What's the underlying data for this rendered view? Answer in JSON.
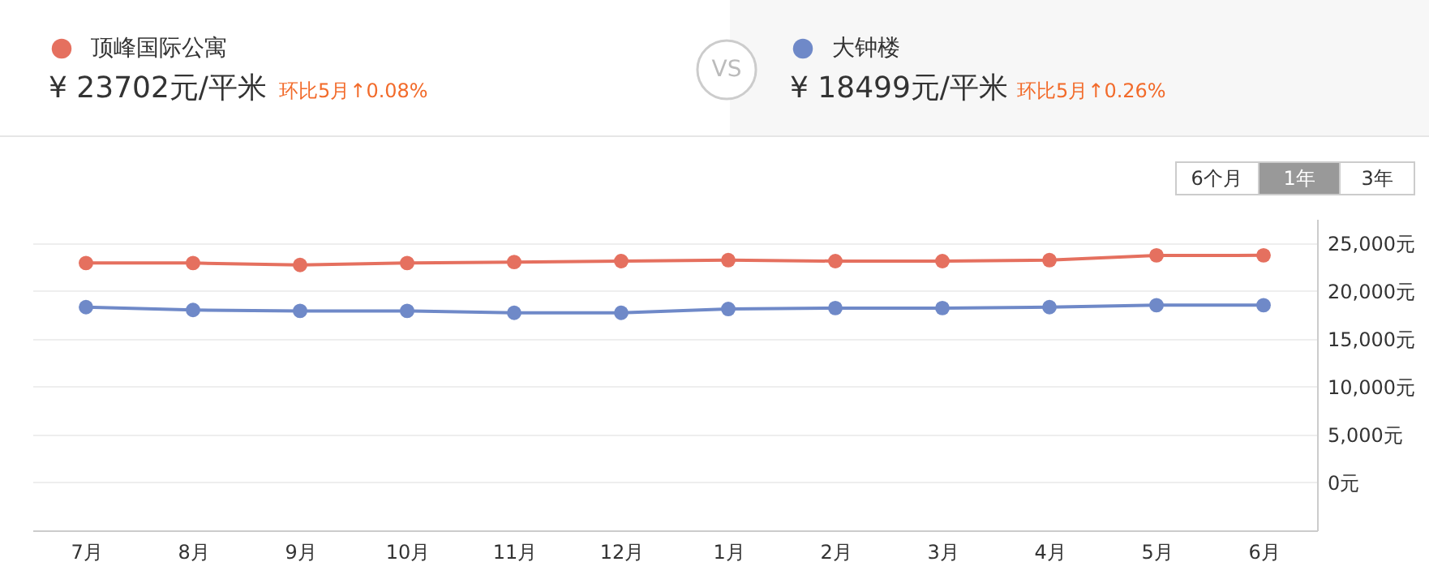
{
  "chart_data": {
    "type": "line",
    "categories": [
      "7月",
      "8月",
      "9月",
      "10月",
      "11月",
      "12月",
      "1月",
      "2月",
      "3月",
      "4月",
      "5月",
      "6月"
    ],
    "series": [
      {
        "name": "顶峰国际公寓",
        "color": "#e5705f",
        "values": [
          22900,
          22900,
          22700,
          22900,
          23000,
          23100,
          23200,
          23100,
          23100,
          23200,
          23700,
          23702
        ]
      },
      {
        "name": "大钟楼",
        "color": "#6f89c8",
        "values": [
          18300,
          18000,
          17900,
          17900,
          17700,
          17700,
          18100,
          18200,
          18200,
          18300,
          18500,
          18499
        ]
      }
    ],
    "ylim": [
      -5000,
      27500
    ],
    "yticks": [
      {
        "value": 0,
        "label": "0元"
      },
      {
        "value": 5000,
        "label": "5,000元"
      },
      {
        "value": 10000,
        "label": "10,000元"
      },
      {
        "value": 15000,
        "label": "15,000元"
      },
      {
        "value": 20000,
        "label": "20,000元"
      },
      {
        "value": 25000,
        "label": "25,000元"
      }
    ],
    "grid": "y",
    "marker": "circle",
    "line_style": "solid",
    "legend": "top",
    "annotations": [
      "¥ 23702元/平米",
      "环比5月↑0.08%",
      "VS",
      "¥ 18499元/平米",
      "环比5月↑0.26%",
      "6个月",
      "1年",
      "3年"
    ]
  }
}
